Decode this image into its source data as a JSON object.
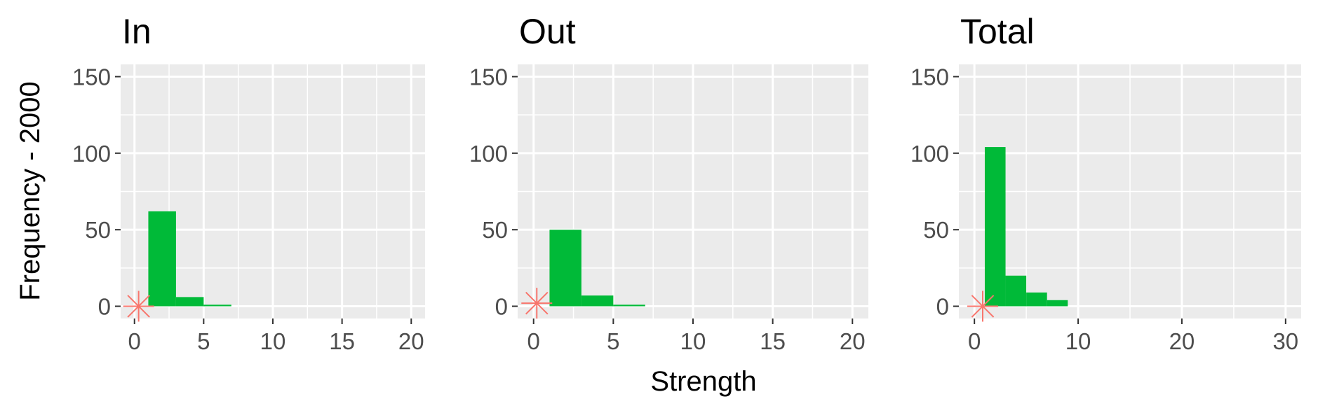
{
  "ylabel": "Frequency - 2000",
  "xlabel": "Strength",
  "colors": {
    "panel_background": "#ebebeb",
    "grid": "#ffffff",
    "bar": "#00ba38",
    "marker": "#f8766d",
    "tick_text": "#4d4d4d"
  },
  "chart_data": [
    {
      "type": "bar",
      "title": "In",
      "bin_width": 2,
      "bins": [
        {
          "x0": 1,
          "x1": 3,
          "count": 62
        },
        {
          "x0": 3,
          "x1": 5,
          "count": 6
        },
        {
          "x0": 5,
          "x1": 7,
          "count": 1
        }
      ],
      "marker": {
        "x": 0.3,
        "y": 0
      },
      "xlim": [
        -1,
        21
      ],
      "ylim": [
        -8,
        158
      ],
      "xticks": [
        0,
        5,
        10,
        15,
        20
      ],
      "yticks": [
        0,
        50,
        100,
        150
      ],
      "xtick_labels": [
        "0",
        "5",
        "10",
        "15",
        "20"
      ],
      "ytick_labels": [
        "0",
        "50",
        "100",
        "150"
      ]
    },
    {
      "type": "bar",
      "title": "Out",
      "bin_width": 2,
      "bins": [
        {
          "x0": 1,
          "x1": 3,
          "count": 50
        },
        {
          "x0": 3,
          "x1": 5,
          "count": 7
        },
        {
          "x0": 5,
          "x1": 7,
          "count": 1
        }
      ],
      "marker": {
        "x": 0.2,
        "y": 2
      },
      "xlim": [
        -1,
        21
      ],
      "ylim": [
        -8,
        158
      ],
      "xticks": [
        0,
        5,
        10,
        15,
        20
      ],
      "yticks": [
        0,
        50,
        100,
        150
      ],
      "xtick_labels": [
        "0",
        "5",
        "10",
        "15",
        "20"
      ],
      "ytick_labels": [
        "0",
        "50",
        "100",
        "150"
      ]
    },
    {
      "type": "bar",
      "title": "Total",
      "bin_width": 2,
      "bins": [
        {
          "x0": 1,
          "x1": 3,
          "count": 104
        },
        {
          "x0": 3,
          "x1": 5,
          "count": 20
        },
        {
          "x0": 5,
          "x1": 7,
          "count": 9
        },
        {
          "x0": 7,
          "x1": 9,
          "count": 4
        }
      ],
      "marker": {
        "x": 0.8,
        "y": 0
      },
      "xlim": [
        -1.5,
        31.5
      ],
      "ylim": [
        -8,
        158
      ],
      "xticks": [
        0,
        10,
        20,
        30
      ],
      "yticks": [
        0,
        50,
        100,
        150
      ],
      "xtick_labels": [
        "0",
        "10",
        "20",
        "30"
      ],
      "ytick_labels": [
        "0",
        "50",
        "100",
        "150"
      ]
    }
  ]
}
